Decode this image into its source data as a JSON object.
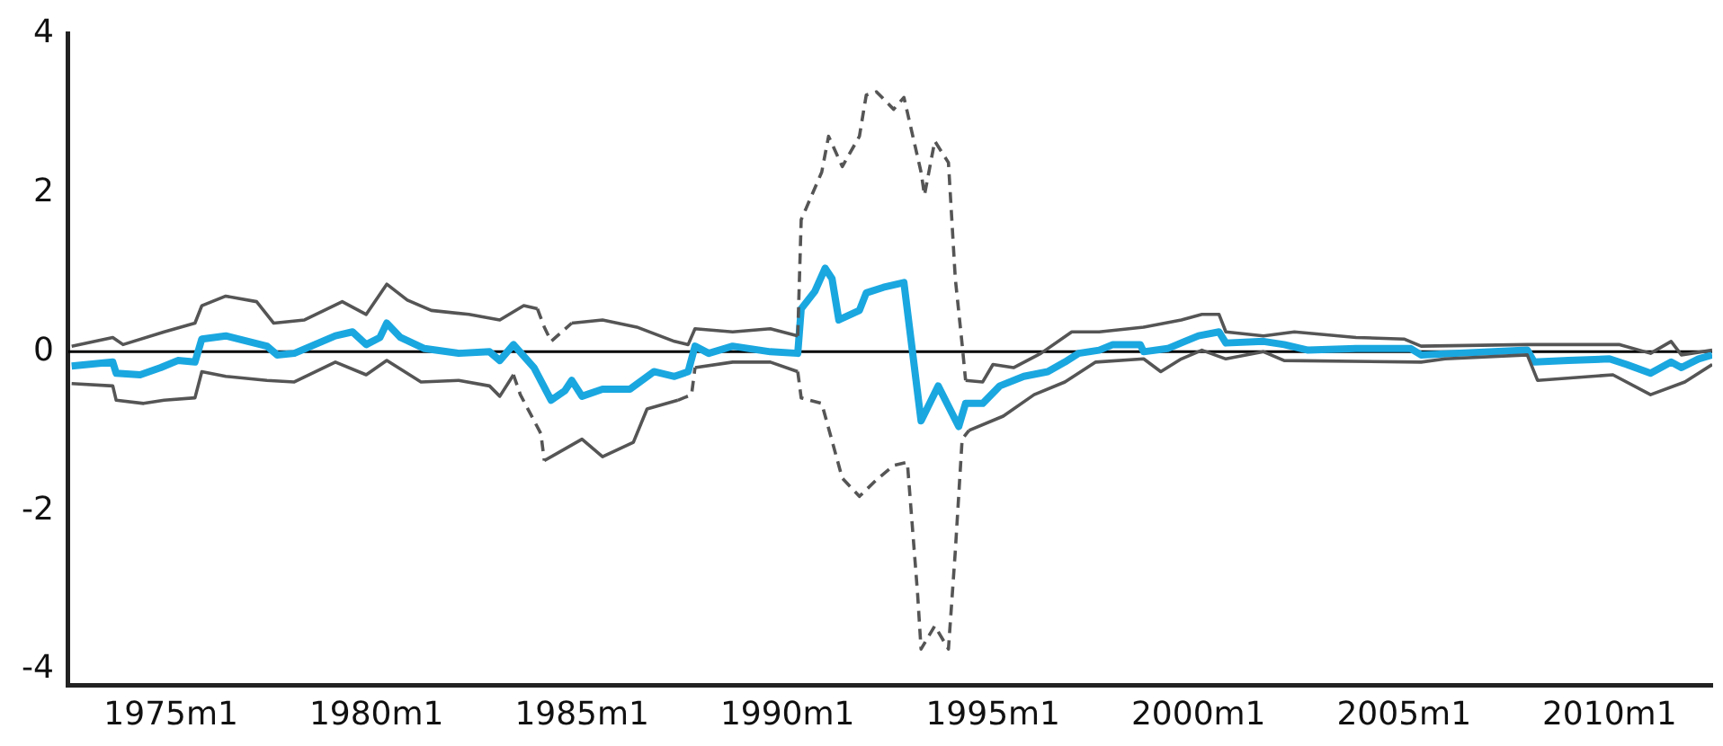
{
  "chart_data": {
    "type": "line",
    "xlim": [
      "1972-07",
      "2012-07"
    ],
    "ylim": [
      -4.2,
      4
    ],
    "xticks": [
      {
        "value": "1975-01",
        "label": "1975m1"
      },
      {
        "value": "1980-01",
        "label": "1980m1"
      },
      {
        "value": "1985-01",
        "label": "1985m1"
      },
      {
        "value": "1990-01",
        "label": "1990m1"
      },
      {
        "value": "1995-01",
        "label": "1995m1"
      },
      {
        "value": "2000-01",
        "label": "2000m1"
      },
      {
        "value": "2005-01",
        "label": "2005m1"
      },
      {
        "value": "2010-01",
        "label": "2010m1"
      }
    ],
    "yticks": [
      -4,
      -2,
      0,
      2,
      4
    ],
    "grid": false,
    "legend": false,
    "ref_lines": [
      {
        "axis": "y",
        "value": 0,
        "color": "#000000"
      }
    ],
    "series": [
      {
        "color": "#555555",
        "line_style": "solid",
        "x": [
          "1972-08",
          "1973-08",
          "1973-11",
          "1974-11",
          "1975-08",
          "1975-10",
          "1976-05",
          "1977-02",
          "1977-07",
          "1978-04",
          "1979-03",
          "1979-10",
          "1980-04",
          "1980-10",
          "1981-05",
          "1982-04",
          "1983-01",
          "1983-08",
          "1983-12"
        ],
        "values": [
          0.07,
          0.18,
          0.09,
          0.25,
          0.36,
          0.58,
          0.7,
          0.63,
          0.36,
          0.4,
          0.63,
          0.47,
          0.85,
          0.65,
          0.52,
          0.47,
          0.4,
          0.58,
          0.54
        ]
      },
      {
        "color": "#555555",
        "line_style": "dashed",
        "x": [
          "1983-12",
          "1984-02",
          "1984-04",
          "1984-10"
        ],
        "values": [
          0.54,
          0.31,
          0.13,
          0.36
        ]
      },
      {
        "color": "#555555",
        "line_style": "solid",
        "x": [
          "1984-10",
          "1985-07",
          "1986-05",
          "1987-04",
          "1987-08",
          "1987-10",
          "1988-09",
          "1989-08",
          "1990-04"
        ],
        "values": [
          0.36,
          0.4,
          0.31,
          0.13,
          0.09,
          0.29,
          0.25,
          0.29,
          0.2
        ]
      },
      {
        "color": "#555555",
        "line_style": "dashed",
        "x": [
          "1990-04",
          "1990-05",
          "1990-11",
          "1991-01",
          "1991-05",
          "1991-10",
          "1991-12",
          "1992-03",
          "1992-08",
          "1992-11",
          "1993-04",
          "1993-05",
          "1993-08",
          "1993-12",
          "1994-02",
          "1994-04",
          "1994-05"
        ],
        "values": [
          0.2,
          1.66,
          2.26,
          2.71,
          2.33,
          2.71,
          3.23,
          3.27,
          3.05,
          3.2,
          2.26,
          1.97,
          2.65,
          2.38,
          0.92,
          0.09,
          -0.36
        ]
      },
      {
        "color": "#555555",
        "line_style": "solid",
        "x": [
          "1994-05",
          "1994-10",
          "1995-01",
          "1995-07",
          "1996-03",
          "1996-12",
          "1997-08",
          "1998-09",
          "1999-08",
          "2000-02",
          "2000-07",
          "2000-09",
          "2001-08",
          "2002-05",
          "2003-11",
          "2005-01",
          "2005-06",
          "2008-01",
          "2010-04",
          "2011-01",
          "2011-07",
          "2011-10",
          "2012-07"
        ],
        "values": [
          -0.36,
          -0.38,
          -0.16,
          -0.2,
          -0.02,
          0.25,
          0.25,
          0.31,
          0.4,
          0.47,
          0.47,
          0.25,
          0.2,
          0.25,
          0.18,
          0.16,
          0.07,
          0.09,
          0.09,
          -0.02,
          0.13,
          -0.04,
          0.02
        ]
      },
      {
        "color": "#555555",
        "line_style": "solid",
        "x": [
          "1972-08",
          "1973-08",
          "1973-09",
          "1974-05",
          "1974-11",
          "1975-08",
          "1975-10",
          "1976-05",
          "1977-05",
          "1978-01",
          "1979-01",
          "1979-10",
          "1980-04",
          "1981-02",
          "1982-01",
          "1982-10",
          "1983-01",
          "1983-05"
        ],
        "values": [
          -0.4,
          -0.43,
          -0.61,
          -0.65,
          -0.61,
          -0.58,
          -0.25,
          -0.31,
          -0.36,
          -0.38,
          -0.13,
          -0.29,
          -0.11,
          -0.38,
          -0.36,
          -0.43,
          -0.56,
          -0.29
        ]
      },
      {
        "color": "#555555",
        "line_style": "dashed",
        "x": [
          "1983-05",
          "1983-07",
          "1984-01",
          "1984-02"
        ],
        "values": [
          -0.29,
          -0.54,
          -1.03,
          -1.37
        ]
      },
      {
        "color": "#555555",
        "line_style": "solid",
        "x": [
          "1984-02",
          "1985-01",
          "1985-07",
          "1986-04",
          "1986-08",
          "1987-05"
        ],
        "values": [
          -1.37,
          -1.1,
          -1.32,
          -1.14,
          -0.72,
          -0.61
        ]
      },
      {
        "color": "#555555",
        "line_style": "dashed",
        "x": [
          "1987-05",
          "1987-09",
          "1987-10"
        ],
        "values": [
          -0.61,
          -0.54,
          -0.2
        ]
      },
      {
        "color": "#555555",
        "line_style": "solid",
        "x": [
          "1987-10",
          "1988-09",
          "1989-08",
          "1990-04"
        ],
        "values": [
          -0.2,
          -0.13,
          -0.13,
          -0.25
        ]
      },
      {
        "color": "#555555",
        "line_style": "dashed",
        "x": [
          "1990-04",
          "1990-05",
          "1990-11",
          "1991-05",
          "1991-10",
          "1992-03",
          "1992-08",
          "1992-12",
          "1993-03",
          "1993-04",
          "1993-08",
          "1993-12",
          "1994-02",
          "1994-04",
          "1994-06"
        ],
        "values": [
          -0.25,
          -0.58,
          -0.65,
          -1.59,
          -1.82,
          -1.61,
          -1.43,
          -1.39,
          -3.05,
          -3.74,
          -3.45,
          -3.74,
          -2.51,
          -1.1,
          -0.99
        ]
      },
      {
        "color": "#555555",
        "line_style": "solid",
        "x": [
          "1994-06",
          "1995-04",
          "1996-01",
          "1996-10",
          "1997-07",
          "1998-09",
          "1999-02",
          "1999-08",
          "2000-02",
          "2000-09",
          "2001-08",
          "2002-02",
          "2005-06",
          "2006-01",
          "2008-01",
          "2008-04",
          "2010-02",
          "2011-01",
          "2011-11",
          "2012-07"
        ],
        "values": [
          -0.99,
          -0.81,
          -0.54,
          -0.38,
          -0.13,
          -0.09,
          -0.25,
          -0.09,
          0.02,
          -0.09,
          0.0,
          -0.11,
          -0.13,
          -0.09,
          -0.04,
          -0.36,
          -0.29,
          -0.54,
          -0.38,
          -0.16
        ]
      },
      {
        "color": "#1aa7e0",
        "line_style": "solid",
        "x": [
          "1972-08",
          "1973-08",
          "1973-09",
          "1974-04",
          "1974-10",
          "1975-03",
          "1975-08",
          "1975-10",
          "1976-05",
          "1977-05",
          "1977-08",
          "1978-01",
          "1979-01",
          "1979-06",
          "1979-10",
          "1980-02",
          "1980-04",
          "1980-08",
          "1981-03",
          "1982-01",
          "1982-10",
          "1983-01",
          "1983-05",
          "1983-11",
          "1984-04",
          "1984-08",
          "1984-10",
          "1985-01",
          "1985-07",
          "1986-03",
          "1986-10",
          "1987-04",
          "1987-08",
          "1987-10",
          "1988-02",
          "1988-09",
          "1989-08",
          "1990-04",
          "1990-05",
          "1990-09",
          "1990-12",
          "1991-02",
          "1991-04",
          "1991-10",
          "1991-12",
          "1992-05",
          "1992-11",
          "1993-04",
          "1993-09",
          "1994-03",
          "1994-05",
          "1994-10",
          "1995-03",
          "1995-10",
          "1996-05",
          "1996-10",
          "1997-02",
          "1997-08",
          "1997-12",
          "1998-08",
          "1998-09",
          "1999-04",
          "1999-09",
          "2000-01",
          "2000-07",
          "2000-09",
          "2001-08",
          "2002-02",
          "2002-09",
          "2003-11",
          "2005-03",
          "2005-06",
          "2006-04",
          "2008-01",
          "2008-03",
          "2009-01",
          "2010-01",
          "2010-06",
          "2011-01",
          "2011-07",
          "2011-10",
          "2012-03",
          "2012-07"
        ],
        "values": [
          -0.18,
          -0.13,
          -0.27,
          -0.29,
          -0.2,
          -0.11,
          -0.13,
          0.16,
          0.2,
          0.07,
          -0.04,
          -0.02,
          0.2,
          0.25,
          0.09,
          0.18,
          0.36,
          0.18,
          0.04,
          -0.02,
          0.0,
          -0.11,
          0.09,
          -0.2,
          -0.61,
          -0.49,
          -0.36,
          -0.56,
          -0.47,
          -0.47,
          -0.25,
          -0.31,
          -0.25,
          0.07,
          -0.02,
          0.07,
          0.0,
          -0.02,
          0.54,
          0.76,
          1.05,
          0.92,
          0.4,
          0.52,
          0.74,
          0.81,
          0.87,
          -0.87,
          -0.43,
          -0.94,
          -0.65,
          -0.65,
          -0.43,
          -0.31,
          -0.25,
          -0.13,
          -0.02,
          0.02,
          0.09,
          0.09,
          0.0,
          0.04,
          0.13,
          0.2,
          0.25,
          0.11,
          0.13,
          0.09,
          0.02,
          0.04,
          0.04,
          -0.04,
          -0.02,
          0.02,
          -0.13,
          -0.11,
          -0.09,
          -0.16,
          -0.27,
          -0.13,
          -0.2,
          -0.09,
          -0.04
        ]
      }
    ]
  }
}
